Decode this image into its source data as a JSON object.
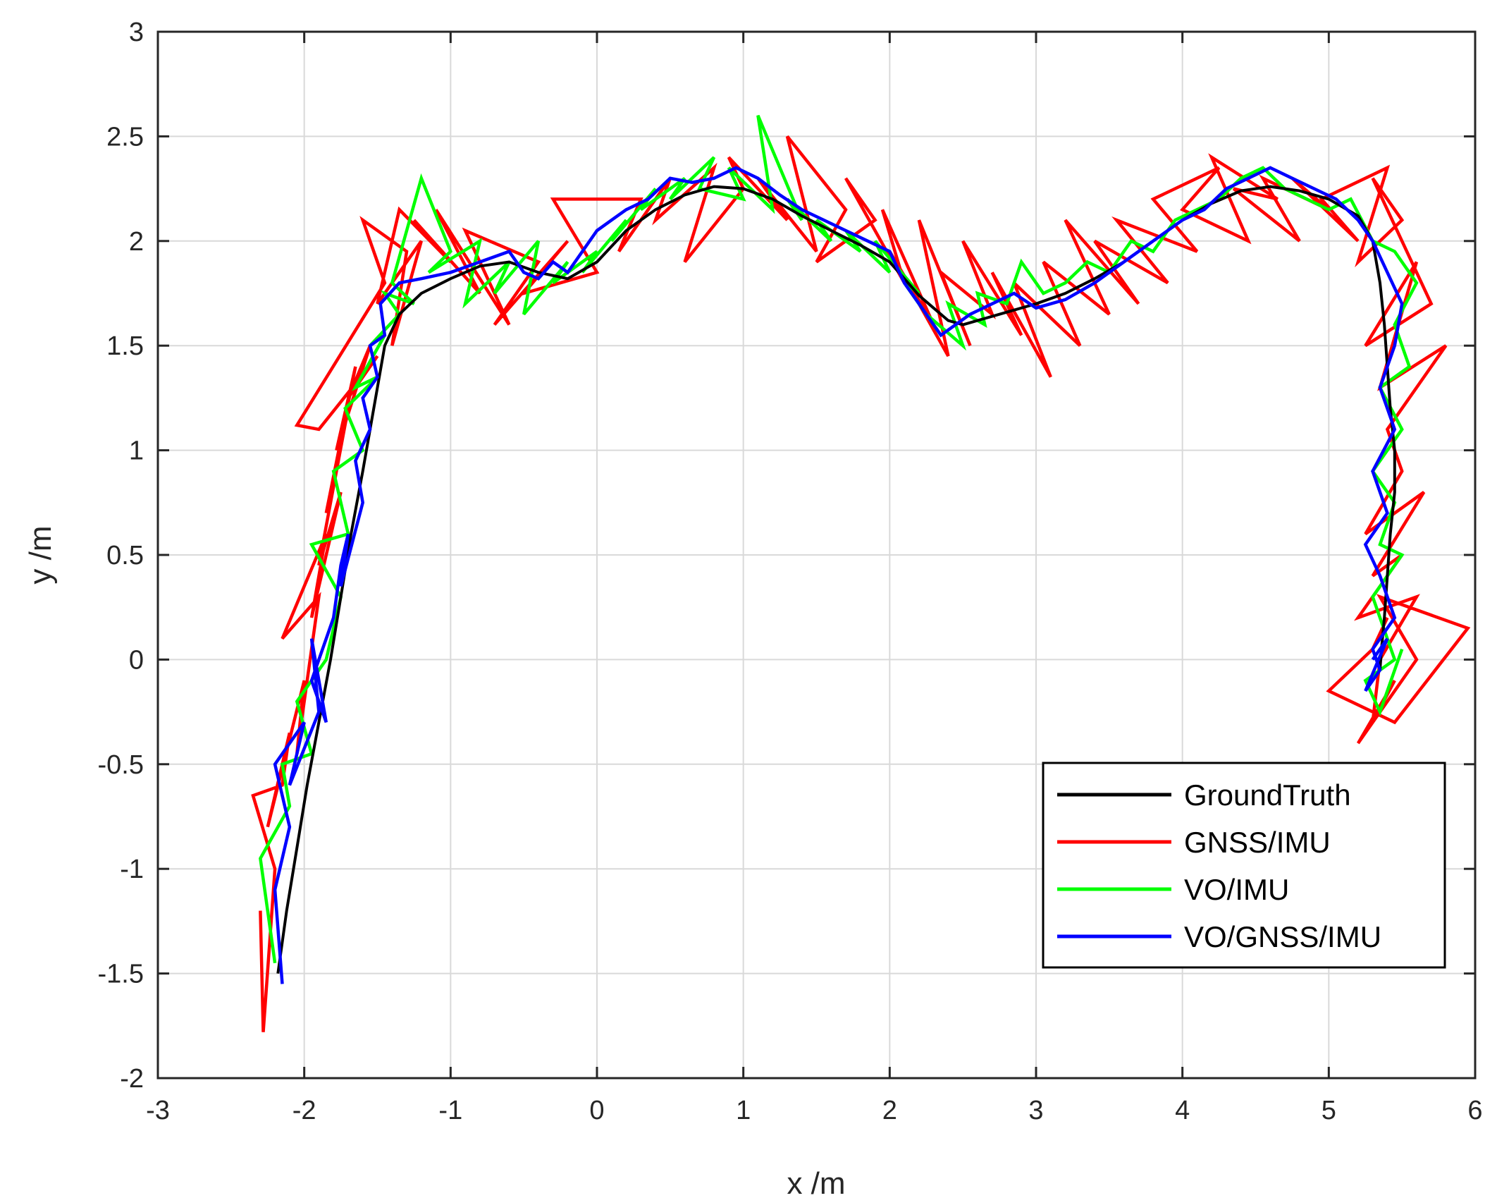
{
  "chart_data": {
    "type": "line",
    "xlabel": "x /m",
    "ylabel": "y /m",
    "xlim": [
      -3,
      6
    ],
    "ylim": [
      -2,
      3
    ],
    "xticks": [
      -3,
      -2,
      -1,
      0,
      1,
      2,
      3,
      4,
      5,
      6
    ],
    "yticks": [
      -2,
      -1.5,
      -1,
      -0.5,
      0,
      0.5,
      1,
      1.5,
      2,
      2.5,
      3
    ],
    "xtick_labels": [
      "-3",
      "-2",
      "-1",
      "0",
      "1",
      "2",
      "3",
      "4",
      "5",
      "6"
    ],
    "ytick_labels": [
      "-2",
      "-1.5",
      "-1",
      "-0.5",
      "0",
      "0.5",
      "1",
      "1.5",
      "2",
      "2.5",
      "3"
    ],
    "grid": true,
    "legend_position": "bottom-right",
    "series": [
      {
        "name": "GroundTruth",
        "color": "#000000",
        "x": [
          -2.18,
          -2.12,
          -2.05,
          -1.98,
          -1.9,
          -1.82,
          -1.75,
          -1.68,
          -1.6,
          -1.55,
          -1.5,
          -1.45,
          -1.35,
          -1.2,
          -1.0,
          -0.8,
          -0.6,
          -0.4,
          -0.2,
          0.0,
          0.2,
          0.4,
          0.6,
          0.8,
          1.0,
          1.2,
          1.4,
          1.6,
          1.8,
          2.0,
          2.1,
          2.2,
          2.3,
          2.4,
          2.5,
          2.6,
          2.8,
          3.0,
          3.2,
          3.4,
          3.6,
          3.8,
          4.0,
          4.2,
          4.4,
          4.6,
          4.8,
          5.0,
          5.2,
          5.3,
          5.35,
          5.38,
          5.4,
          5.42,
          5.45,
          5.45,
          5.42,
          5.4,
          5.38,
          5.36,
          5.35
        ],
        "y": [
          -1.5,
          -1.2,
          -0.9,
          -0.6,
          -0.3,
          0.0,
          0.3,
          0.6,
          0.9,
          1.1,
          1.3,
          1.5,
          1.65,
          1.75,
          1.82,
          1.88,
          1.9,
          1.85,
          1.82,
          1.9,
          2.05,
          2.15,
          2.22,
          2.26,
          2.25,
          2.2,
          2.12,
          2.05,
          1.98,
          1.9,
          1.82,
          1.74,
          1.68,
          1.62,
          1.6,
          1.62,
          1.66,
          1.7,
          1.75,
          1.82,
          1.9,
          2.0,
          2.1,
          2.18,
          2.24,
          2.26,
          2.24,
          2.2,
          2.12,
          2.0,
          1.8,
          1.6,
          1.4,
          1.2,
          1.0,
          0.8,
          0.6,
          0.4,
          0.2,
          0.05,
          -0.05
        ]
      },
      {
        "name": "GNSS/IMU",
        "color": "#ff0000",
        "x": [
          -2.3,
          -2.28,
          -2.2,
          -2.35,
          -2.15,
          -2.1,
          -2.25,
          -2.0,
          -2.05,
          -1.9,
          -2.15,
          -1.85,
          -1.95,
          -1.75,
          -1.9,
          -1.7,
          -1.85,
          -1.65,
          -1.78,
          -1.55,
          -1.7,
          -1.5,
          -1.9,
          -2.05,
          -1.45,
          -1.6,
          -1.3,
          -1.4,
          -1.2,
          -1.5,
          -1.35,
          -1.0,
          -1.25,
          -0.8,
          -1.1,
          -0.6,
          -0.9,
          -0.4,
          -0.7,
          -0.2,
          -0.5,
          0.0,
          -0.3,
          0.3,
          0.15,
          0.5,
          0.4,
          0.8,
          0.6,
          1.0,
          0.9,
          1.3,
          1.1,
          1.5,
          1.3,
          1.7,
          1.5,
          1.9,
          1.7,
          2.1,
          1.95,
          2.3,
          2.0,
          2.4,
          2.2,
          2.55,
          2.35,
          2.7,
          2.5,
          2.9,
          2.7,
          3.1,
          2.85,
          3.3,
          3.05,
          3.5,
          3.2,
          3.7,
          3.4,
          3.9,
          3.55,
          4.1,
          3.8,
          4.25,
          4.0,
          4.45,
          4.2,
          4.65,
          4.35,
          4.8,
          4.55,
          5.0,
          4.75,
          5.2,
          4.95,
          5.4,
          5.2,
          5.5,
          5.3,
          5.7,
          5.25,
          5.6,
          5.35,
          5.8,
          5.4,
          5.5,
          5.25,
          5.65,
          5.3,
          5.5,
          5.2,
          5.6,
          5.35,
          5.3,
          5.45,
          5.2,
          5.6,
          5.35,
          5.95,
          5.45,
          5.0,
          5.3,
          5.4
        ],
        "y": [
          -1.2,
          -1.78,
          -1.0,
          -0.65,
          -0.6,
          -0.35,
          -0.8,
          -0.1,
          -0.45,
          0.3,
          0.1,
          0.6,
          0.2,
          0.8,
          0.45,
          1.2,
          0.7,
          1.4,
          1.0,
          1.5,
          1.25,
          1.45,
          1.1,
          1.12,
          1.8,
          2.1,
          1.95,
          1.5,
          2.0,
          1.7,
          2.15,
          1.9,
          2.1,
          1.75,
          2.15,
          1.6,
          2.05,
          1.9,
          1.6,
          2.0,
          1.75,
          1.85,
          2.2,
          2.2,
          1.95,
          2.3,
          2.1,
          2.35,
          1.9,
          2.25,
          2.4,
          2.1,
          2.3,
          1.95,
          2.5,
          2.15,
          1.9,
          2.1,
          2.3,
          1.8,
          2.15,
          1.6,
          1.95,
          1.45,
          2.1,
          1.5,
          1.85,
          1.65,
          2.0,
          1.55,
          1.85,
          1.35,
          1.8,
          1.5,
          1.9,
          1.65,
          2.1,
          1.7,
          2.0,
          1.8,
          2.1,
          1.95,
          2.2,
          2.35,
          2.15,
          2.0,
          2.4,
          2.2,
          2.25,
          2.0,
          2.3,
          2.15,
          2.3,
          2.0,
          2.2,
          2.35,
          1.9,
          2.1,
          2.3,
          1.7,
          1.5,
          1.9,
          1.3,
          1.5,
          1.1,
          0.9,
          0.6,
          0.8,
          0.4,
          0.5,
          0.2,
          0.3,
          0.0,
          -0.3,
          -0.1,
          -0.4,
          0.0,
          0.3,
          0.15,
          -0.3,
          -0.15,
          0.05,
          0.2
        ]
      },
      {
        "name": "VO/IMU",
        "color": "#00ff00",
        "x": [
          -2.25,
          -2.2,
          -2.3,
          -2.1,
          -2.15,
          -1.95,
          -2.05,
          -1.85,
          -1.75,
          -1.95,
          -1.7,
          -1.8,
          -1.6,
          -1.72,
          -1.5,
          -1.65,
          -1.45,
          -1.55,
          -1.35,
          -1.45,
          -1.25,
          -1.4,
          -1.2,
          -1.0,
          -1.15,
          -0.8,
          -0.9,
          -0.6,
          -0.7,
          -0.4,
          -0.5,
          -0.2,
          -0.3,
          0.0,
          -0.1,
          0.2,
          0.1,
          0.4,
          0.3,
          0.6,
          0.5,
          0.8,
          0.7,
          1.0,
          0.9,
          1.2,
          1.1,
          1.4,
          1.3,
          1.6,
          1.5,
          1.8,
          1.7,
          2.0,
          1.9,
          2.2,
          2.1,
          2.35,
          2.25,
          2.5,
          2.4,
          2.65,
          2.6,
          2.8,
          2.9,
          3.05,
          3.2,
          3.35,
          3.5,
          3.65,
          3.8,
          3.95,
          4.1,
          4.25,
          4.4,
          4.55,
          4.7,
          4.85,
          5.0,
          5.15,
          5.3,
          5.45,
          5.6,
          5.45,
          5.55,
          5.35,
          5.5,
          5.3,
          5.45,
          5.35,
          5.5,
          5.3,
          5.4,
          5.45,
          5.25,
          5.35,
          5.5
        ],
        "y": [
          -1.2,
          -1.45,
          -0.95,
          -0.7,
          -0.5,
          -0.45,
          -0.2,
          0.0,
          0.3,
          0.55,
          0.6,
          0.9,
          1.0,
          1.2,
          1.35,
          1.3,
          1.55,
          1.5,
          1.65,
          1.75,
          1.7,
          1.8,
          2.3,
          1.95,
          1.85,
          2.0,
          1.7,
          1.9,
          1.75,
          2.0,
          1.65,
          1.9,
          1.8,
          1.95,
          1.85,
          2.1,
          2.0,
          2.25,
          2.15,
          2.3,
          2.2,
          2.4,
          2.25,
          2.2,
          2.35,
          2.15,
          2.6,
          2.1,
          2.2,
          2.0,
          2.1,
          1.95,
          2.05,
          1.85,
          2.0,
          1.75,
          1.8,
          1.55,
          1.65,
          1.5,
          1.7,
          1.6,
          1.75,
          1.7,
          1.9,
          1.75,
          1.8,
          1.9,
          1.85,
          2.0,
          1.95,
          2.1,
          2.15,
          2.2,
          2.3,
          2.35,
          2.25,
          2.2,
          2.15,
          2.2,
          2.0,
          1.95,
          1.8,
          1.6,
          1.4,
          1.3,
          1.1,
          0.9,
          0.75,
          0.55,
          0.5,
          0.3,
          0.1,
          0.0,
          -0.1,
          -0.25,
          0.05
        ]
      },
      {
        "name": "VO/GNSS/IMU",
        "color": "#0000ff",
        "x": [
          -2.15,
          -2.2,
          -2.1,
          -2.2,
          -2.0,
          -2.1,
          -1.9,
          -1.95,
          -1.85,
          -1.95,
          -1.8,
          -1.75,
          -1.7,
          -1.75,
          -1.6,
          -1.65,
          -1.55,
          -1.6,
          -1.5,
          -1.55,
          -1.45,
          -1.48,
          -1.35,
          -1.2,
          -1.0,
          -0.8,
          -0.6,
          -0.5,
          -0.4,
          -0.3,
          -0.2,
          0.0,
          0.1,
          0.2,
          0.35,
          0.5,
          0.65,
          0.8,
          0.95,
          1.1,
          1.25,
          1.4,
          1.55,
          1.7,
          1.85,
          2.0,
          2.1,
          2.2,
          2.3,
          2.35,
          2.45,
          2.55,
          2.7,
          2.85,
          3.0,
          3.2,
          3.4,
          3.6,
          3.8,
          4.0,
          4.15,
          4.3,
          4.45,
          4.6,
          4.75,
          4.9,
          5.05,
          5.2,
          5.3,
          5.4,
          5.5,
          5.45,
          5.35,
          5.45,
          5.3,
          5.4,
          5.25,
          5.35,
          5.45,
          5.3,
          5.35,
          5.25,
          5.4,
          5.3
        ],
        "y": [
          -1.55,
          -1.1,
          -0.8,
          -0.5,
          -0.3,
          -0.6,
          -0.25,
          0.1,
          -0.3,
          -0.1,
          0.2,
          0.45,
          0.6,
          0.35,
          0.75,
          0.95,
          1.1,
          1.25,
          1.35,
          1.5,
          1.55,
          1.7,
          1.8,
          1.82,
          1.85,
          1.9,
          1.95,
          1.85,
          1.82,
          1.9,
          1.85,
          2.05,
          2.1,
          2.15,
          2.2,
          2.3,
          2.28,
          2.3,
          2.35,
          2.3,
          2.22,
          2.15,
          2.1,
          2.05,
          2.0,
          1.95,
          1.8,
          1.7,
          1.6,
          1.55,
          1.6,
          1.65,
          1.7,
          1.75,
          1.68,
          1.72,
          1.8,
          1.9,
          2.0,
          2.1,
          2.15,
          2.25,
          2.3,
          2.35,
          2.3,
          2.25,
          2.2,
          2.1,
          2.0,
          1.85,
          1.7,
          1.5,
          1.3,
          1.1,
          0.9,
          0.7,
          0.55,
          0.4,
          0.2,
          0.05,
          -0.05,
          -0.15,
          0.1,
          0.0
        ]
      }
    ]
  }
}
